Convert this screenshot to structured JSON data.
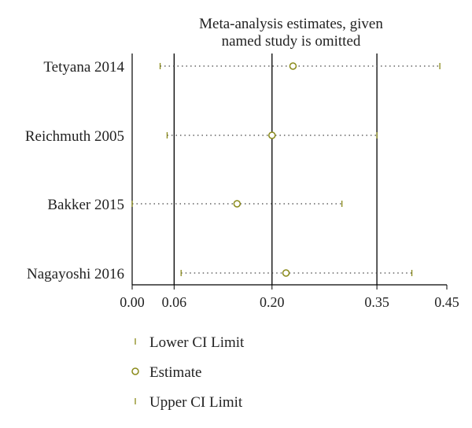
{
  "chart_data": {
    "type": "scatter",
    "title_lines": [
      "Meta-analysis estimates, given",
      "named study is omitted"
    ],
    "studies": [
      "Tetyana 2014",
      "Reichmuth 2005",
      "Bakker 2015",
      "Nagayoshi 2016"
    ],
    "lower": [
      0.04,
      0.05,
      0.0,
      0.07
    ],
    "estimate": [
      0.23,
      0.2,
      0.15,
      0.22
    ],
    "upper": [
      0.44,
      0.35,
      0.3,
      0.4
    ],
    "xlim": [
      0.0,
      0.45
    ],
    "xticks": [
      0.0,
      0.06,
      0.2,
      0.35,
      0.45
    ],
    "xtick_labels": [
      "0.00",
      "0.06",
      "0.20",
      "0.35",
      "0.45"
    ],
    "vlines": [
      0.06,
      0.2,
      0.35
    ]
  },
  "legend": {
    "lower_label": "Lower CI Limit",
    "estimate_label": "Estimate",
    "upper_label": "Upper CI Limit"
  },
  "colors": {
    "marker": "#8a8a1a",
    "line": "#000000"
  }
}
